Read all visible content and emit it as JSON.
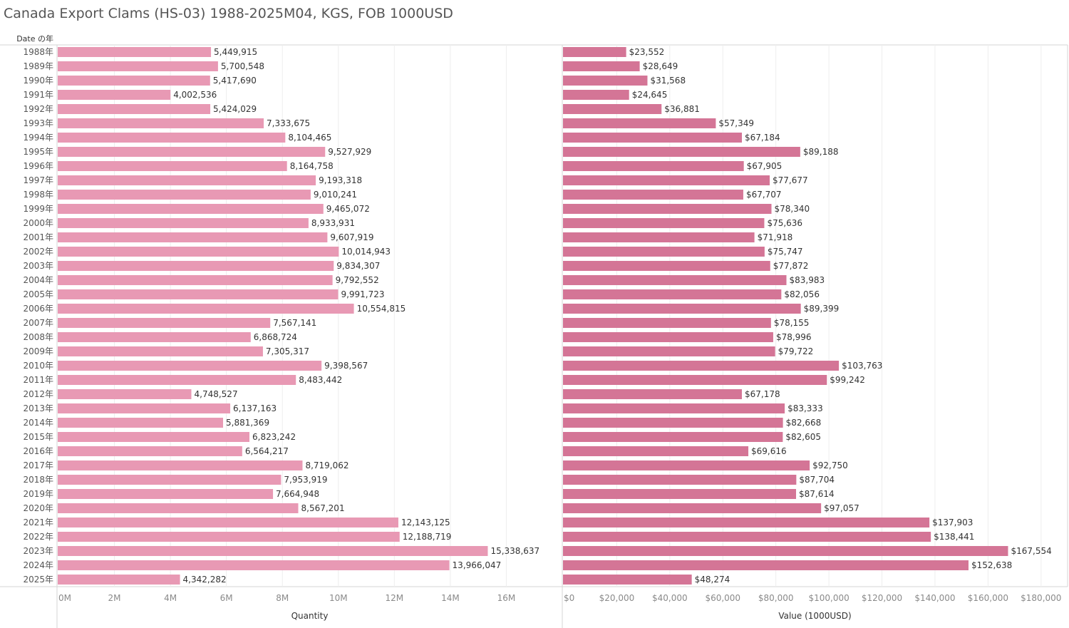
{
  "title": "Canada Export Clams (HS-03) 1988-2025M04, KGS, FOB 1000USD",
  "row_header": "Date の年",
  "chart_data": [
    {
      "type": "bar",
      "orientation": "horizontal",
      "title": "",
      "categories": [
        "1988年",
        "1989年",
        "1990年",
        "1991年",
        "1992年",
        "1993年",
        "1994年",
        "1995年",
        "1996年",
        "1997年",
        "1998年",
        "1999年",
        "2000年",
        "2001年",
        "2002年",
        "2003年",
        "2004年",
        "2005年",
        "2006年",
        "2007年",
        "2008年",
        "2009年",
        "2010年",
        "2011年",
        "2012年",
        "2013年",
        "2014年",
        "2015年",
        "2016年",
        "2017年",
        "2018年",
        "2019年",
        "2020年",
        "2021年",
        "2022年",
        "2023年",
        "2024年",
        "2025年"
      ],
      "values": [
        5449915,
        5700548,
        5417690,
        4002536,
        5424029,
        7333675,
        8104465,
        9527929,
        8164758,
        9193318,
        9010241,
        9465072,
        8933931,
        9607919,
        10014943,
        9834307,
        9792552,
        9991723,
        10554815,
        7567141,
        6868724,
        7305317,
        9398567,
        8483442,
        4748527,
        6137163,
        5881369,
        6823242,
        6564217,
        8719062,
        7953919,
        7664948,
        8567201,
        12143125,
        12188719,
        15338637,
        13966047,
        4342282
      ],
      "data_labels": [
        "5,449,915",
        "5,700,548",
        "5,417,690",
        "4,002,536",
        "5,424,029",
        "7,333,675",
        "8,104,465",
        "9,527,929",
        "8,164,758",
        "9,193,318",
        "9,010,241",
        "9,465,072",
        "8,933,931",
        "9,607,919",
        "10,014,943",
        "9,834,307",
        "9,792,552",
        "9,991,723",
        "10,554,815",
        "7,567,141",
        "6,868,724",
        "7,305,317",
        "9,398,567",
        "8,483,442",
        "4,748,527",
        "6,137,163",
        "5,881,369",
        "6,823,242",
        "6,564,217",
        "8,719,062",
        "7,953,919",
        "7,664,948",
        "8,567,201",
        "12,143,125",
        "12,188,719",
        "15,338,637",
        "13,966,047",
        "4,342,282"
      ],
      "xlabel": "Quantity",
      "xlim": [
        0,
        18000000
      ],
      "ticks": [
        0,
        2000000,
        4000000,
        6000000,
        8000000,
        10000000,
        12000000,
        14000000,
        16000000
      ],
      "tick_labels": [
        "0M",
        "2M",
        "4M",
        "6M",
        "8M",
        "10M",
        "12M",
        "14M",
        "16M"
      ],
      "color": "#e899b4",
      "grid": true
    },
    {
      "type": "bar",
      "orientation": "horizontal",
      "title": "",
      "categories": [
        "1988年",
        "1989年",
        "1990年",
        "1991年",
        "1992年",
        "1993年",
        "1994年",
        "1995年",
        "1996年",
        "1997年",
        "1998年",
        "1999年",
        "2000年",
        "2001年",
        "2002年",
        "2003年",
        "2004年",
        "2005年",
        "2006年",
        "2007年",
        "2008年",
        "2009年",
        "2010年",
        "2011年",
        "2012年",
        "2013年",
        "2014年",
        "2015年",
        "2016年",
        "2017年",
        "2018年",
        "2019年",
        "2020年",
        "2021年",
        "2022年",
        "2023年",
        "2024年",
        "2025年"
      ],
      "values": [
        23552,
        28649,
        31568,
        24645,
        36881,
        57349,
        67184,
        89188,
        67905,
        77677,
        67707,
        78340,
        75636,
        71918,
        75747,
        77872,
        83983,
        82056,
        89399,
        78155,
        78996,
        79722,
        103763,
        99242,
        67178,
        83333,
        82668,
        82605,
        69616,
        92750,
        87704,
        87614,
        97057,
        137903,
        138441,
        167554,
        152638,
        48274
      ],
      "data_labels": [
        "$23,552",
        "$28,649",
        "$31,568",
        "$24,645",
        "$36,881",
        "$57,349",
        "$67,184",
        "$89,188",
        "$67,905",
        "$77,677",
        "$67,707",
        "$78,340",
        "$75,636",
        "$71,918",
        "$75,747",
        "$77,872",
        "$83,983",
        "$82,056",
        "$89,399",
        "$78,155",
        "$78,996",
        "$79,722",
        "$103,763",
        "$99,242",
        "$67,178",
        "$83,333",
        "$82,668",
        "$82,605",
        "$69,616",
        "$92,750",
        "$87,704",
        "$87,614",
        "$97,057",
        "$137,903",
        "$138,441",
        "$167,554",
        "$152,638",
        "$48,274"
      ],
      "xlabel": "Value (1000USD)",
      "xlim": [
        0,
        190000
      ],
      "ticks": [
        0,
        20000,
        40000,
        60000,
        80000,
        100000,
        120000,
        140000,
        160000,
        180000
      ],
      "tick_labels": [
        "$0",
        "$20,000",
        "$40,000",
        "$60,000",
        "$80,000",
        "$100,000",
        "$120,000",
        "$140,000",
        "$160,000",
        "$180,000"
      ],
      "color": "#d47596",
      "grid": true
    }
  ]
}
